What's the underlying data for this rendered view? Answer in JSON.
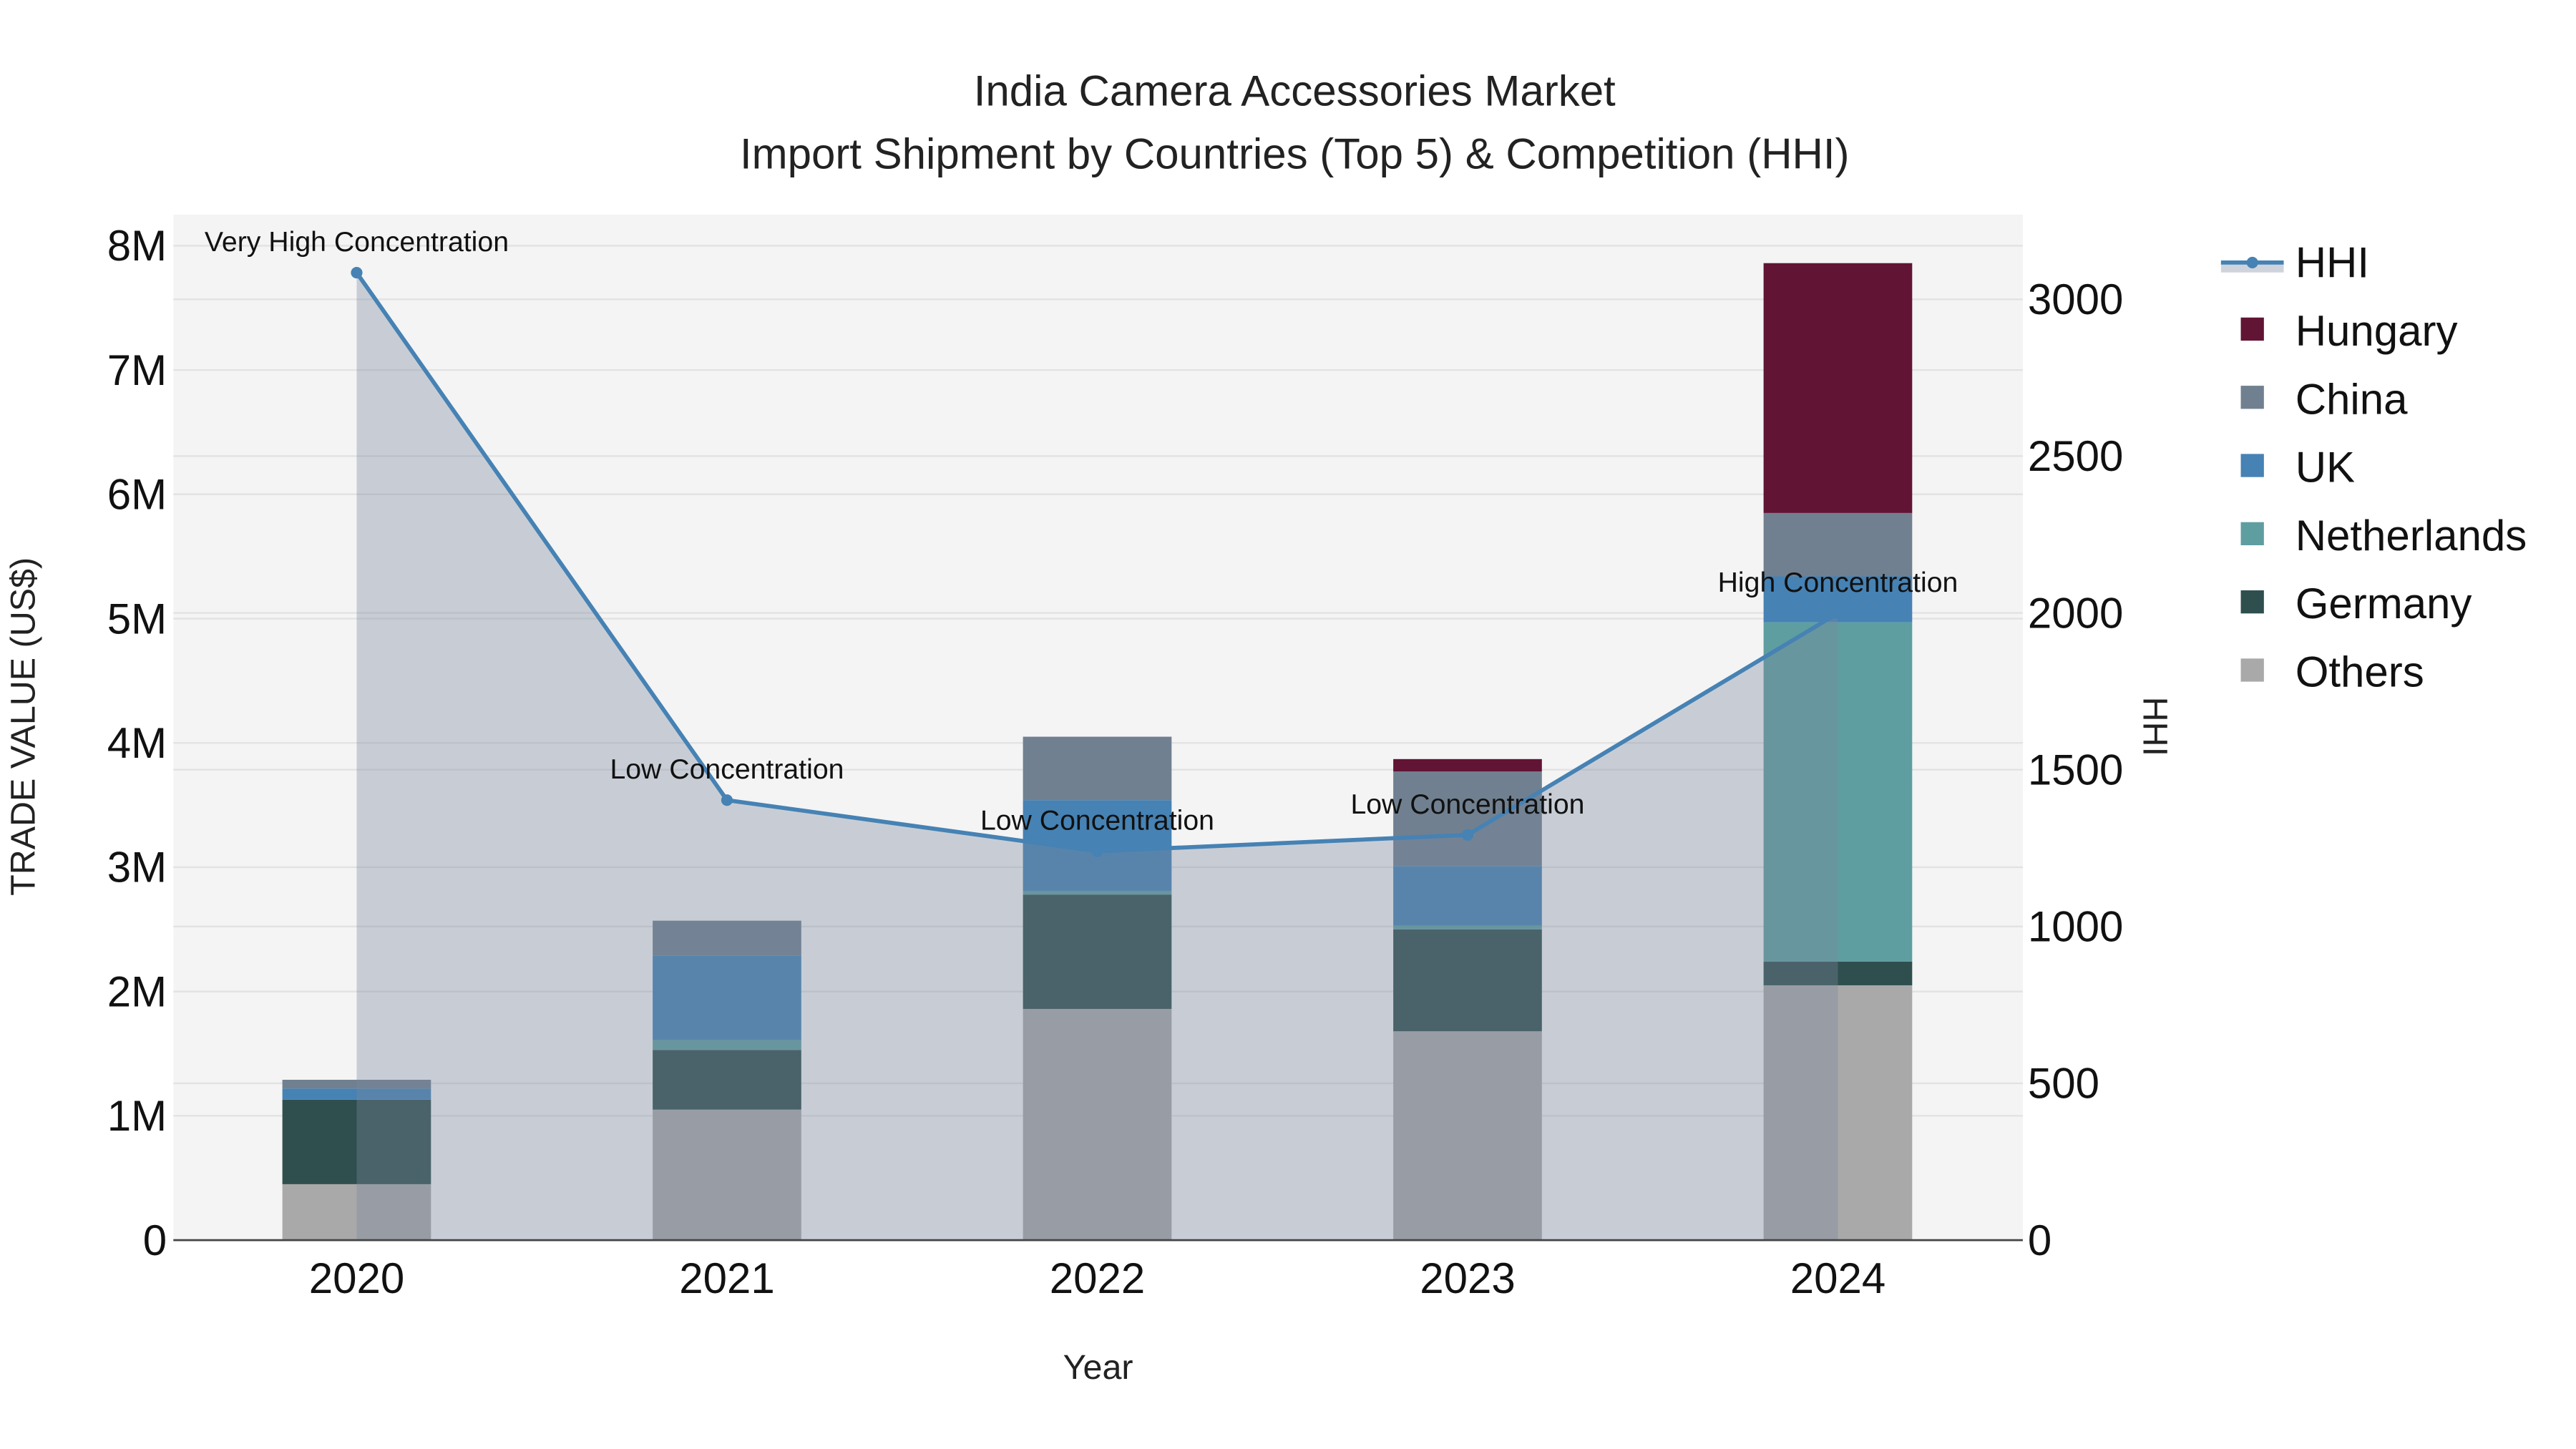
{
  "chart_data": {
    "type": "bar",
    "title": "India Camera Accessories Market",
    "subtitle": "Import Shipment by Countries (Top 5) & Competition (HHI)",
    "xlabel": "Year",
    "ylabel": "TRADE VALUE (US$)",
    "y2label": "HHI",
    "categories": [
      "2020",
      "2021",
      "2022",
      "2023",
      "2024"
    ],
    "ylim": [
      0,
      8250000
    ],
    "y_ticks": [
      {
        "v": 0,
        "label": "0"
      },
      {
        "v": 1000000,
        "label": "1M"
      },
      {
        "v": 2000000,
        "label": "2M"
      },
      {
        "v": 3000000,
        "label": "3M"
      },
      {
        "v": 4000000,
        "label": "4M"
      },
      {
        "v": 5000000,
        "label": "5M"
      },
      {
        "v": 6000000,
        "label": "6M"
      },
      {
        "v": 7000000,
        "label": "7M"
      },
      {
        "v": 8000000,
        "label": "8M"
      }
    ],
    "y2lim": [
      0,
      3270
    ],
    "y2_ticks": [
      {
        "v": 0,
        "label": "0"
      },
      {
        "v": 500,
        "label": "500"
      },
      {
        "v": 1000,
        "label": "1000"
      },
      {
        "v": 1500,
        "label": "1500"
      },
      {
        "v": 2000,
        "label": "2000"
      },
      {
        "v": 2500,
        "label": "2500"
      },
      {
        "v": 3000,
        "label": "3000"
      }
    ],
    "stack_order": [
      "Others",
      "Germany",
      "Netherlands",
      "UK",
      "China",
      "Hungary"
    ],
    "series": [
      {
        "name": "Others",
        "color": "#A9A9A9",
        "values": [
          450000,
          1050000,
          1860000,
          1680000,
          2050000
        ]
      },
      {
        "name": "Germany",
        "color": "#2F4F4F",
        "values": [
          680000,
          480000,
          920000,
          820000,
          190000
        ]
      },
      {
        "name": "Netherlands",
        "color": "#5F9EA0",
        "values": [
          0,
          80000,
          30000,
          30000,
          2730000
        ]
      },
      {
        "name": "UK",
        "color": "#4682B4",
        "values": [
          90000,
          680000,
          730000,
          480000,
          370000
        ]
      },
      {
        "name": "China",
        "color": "#708090",
        "values": [
          70000,
          280000,
          510000,
          760000,
          510000
        ]
      },
      {
        "name": "Hungary",
        "color": "#611434",
        "values": [
          0,
          0,
          0,
          100000,
          2010000
        ]
      }
    ],
    "hhi": {
      "name": "HHI",
      "color": "#4682B4",
      "axis": "right",
      "values": [
        3085,
        1403,
        1240,
        1292,
        1999
      ],
      "annotations": [
        "Very High Concentration",
        "Low Concentration",
        "Low Concentration",
        "Low Concentration",
        "High Concentration"
      ]
    },
    "legend": {
      "placement": "right",
      "order": [
        "HHI",
        "Hungary",
        "China",
        "UK",
        "Netherlands",
        "Germany",
        "Others"
      ]
    },
    "grid": true
  }
}
